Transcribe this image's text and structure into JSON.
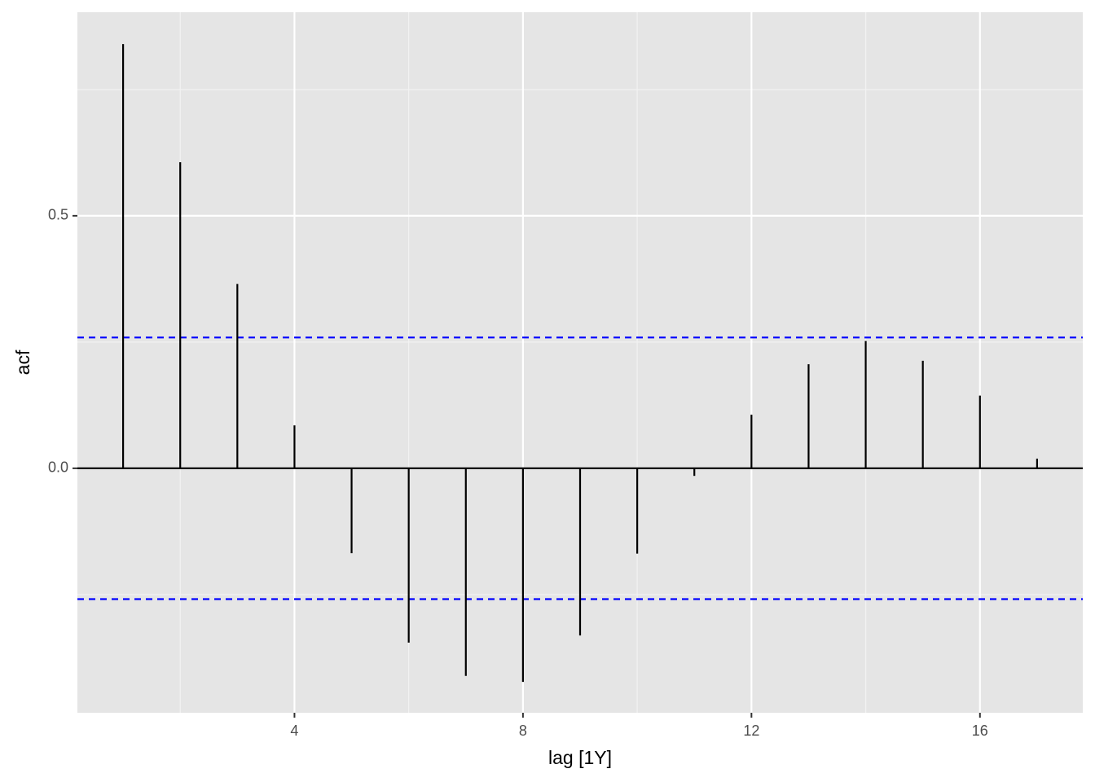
{
  "chart_data": {
    "type": "stem",
    "x_label": "lag [1Y]",
    "y_label": "acf",
    "x": [
      1,
      2,
      3,
      4,
      5,
      6,
      7,
      8,
      9,
      10,
      11,
      12,
      13,
      14,
      15,
      16,
      17
    ],
    "series": [
      {
        "color": "#000000",
        "values": [
          0.84,
          0.606,
          0.365,
          0.085,
          -0.168,
          -0.345,
          -0.411,
          -0.423,
          -0.331,
          -0.169,
          -0.015,
          0.106,
          0.206,
          0.252,
          0.213,
          0.144,
          0.019
        ]
      }
    ],
    "reference_lines": [
      {
        "value": 0.259,
        "color": "#0000ff",
        "dashed": true
      },
      {
        "value": -0.259,
        "color": "#0000ff",
        "dashed": true
      }
    ],
    "xlim": [
      0.2,
      17.8
    ],
    "ylim": [
      -0.484,
      0.903
    ],
    "xticks": [
      4,
      8,
      12,
      16
    ],
    "yticks": [
      {
        "value": 0,
        "label": "0.0"
      },
      {
        "value": 0.5,
        "label": "0.5"
      }
    ],
    "grid": true,
    "minor_grid": true
  }
}
